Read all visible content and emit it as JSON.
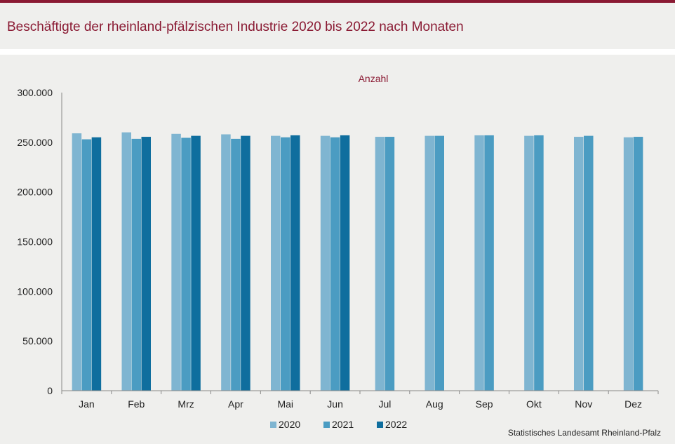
{
  "header": {
    "title": "Beschäftigte der rheinland-pfälzischen Industrie 2020 bis 2022 nach Monaten"
  },
  "footer": {
    "source": "Statistisches Landesamt Rheinland-Pfalz"
  },
  "colors": {
    "accent": "#8a1a33",
    "background": "#efefed",
    "series": [
      "#7fb5d1",
      "#4b9cc2",
      "#0f6e9e"
    ]
  },
  "chart_data": {
    "type": "bar",
    "title": "",
    "ylabel": "Anzahl",
    "xlabel": "",
    "ylim": [
      0,
      300000
    ],
    "yticks": [
      "0",
      "50.000",
      "100.000",
      "150.000",
      "200.000",
      "250.000",
      "300.000"
    ],
    "categories": [
      "Jan",
      "Feb",
      "Mrz",
      "Apr",
      "Mai",
      "Jun",
      "Jul",
      "Aug",
      "Sep",
      "Okt",
      "Nov",
      "Dez"
    ],
    "series": [
      {
        "name": "2020",
        "values": [
          259000,
          260000,
          258500,
          258000,
          256500,
          256500,
          255500,
          256500,
          257000,
          256500,
          255500,
          255000
        ]
      },
      {
        "name": "2021",
        "values": [
          253000,
          253500,
          254500,
          253500,
          255000,
          255000,
          255500,
          256500,
          257000,
          257000,
          256500,
          255500
        ]
      },
      {
        "name": "2022",
        "values": [
          255000,
          255500,
          256500,
          256500,
          257000,
          257000,
          null,
          null,
          null,
          null,
          null,
          null
        ]
      }
    ],
    "legend": "bottom-center",
    "grid": false
  }
}
